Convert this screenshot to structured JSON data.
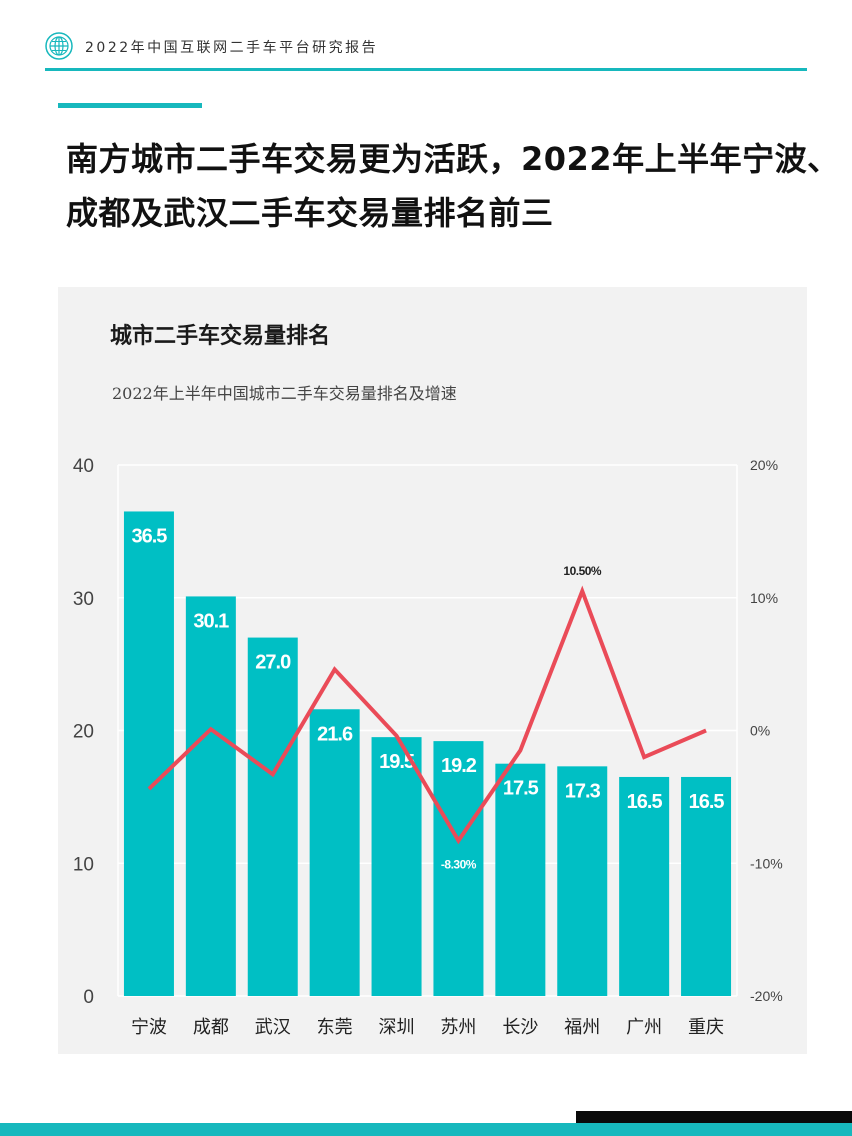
{
  "header": {
    "report_title": "2022年中国互联网二手车平台研究报告",
    "logo_icon": "globe-logo-icon"
  },
  "headline": {
    "line1": "南方城市二手车交易更为活跃，2022年上半年宁波、",
    "line2": "成都及武汉二手车交易量排名前三"
  },
  "colors": {
    "accent": "#17b8bd",
    "bar": "#00bfc4",
    "line": "#ea4b58",
    "panel": "#f2f2f2"
  },
  "chart_data": {
    "type": "bar",
    "title": "城市二手车交易量排名",
    "subtitle": "2022年上半年中国城市二手车交易量排名及增速",
    "categories": [
      "宁波",
      "成都",
      "武汉",
      "东莞",
      "深圳",
      "苏州",
      "长沙",
      "福州",
      "广州",
      "重庆"
    ],
    "series": [
      {
        "name": "交易量",
        "type": "bar",
        "axis": "left",
        "values": [
          36.5,
          30.1,
          27.0,
          21.6,
          19.5,
          19.2,
          17.5,
          17.3,
          16.5,
          16.5
        ],
        "labels": [
          "36.5",
          "30.1",
          "27.0",
          "21.6",
          "19.5",
          "19.2",
          "17.5",
          "17.3",
          "16.5",
          "16.5"
        ]
      },
      {
        "name": "增速",
        "type": "line",
        "axis": "right",
        "values": [
          -4.4,
          0.1,
          -3.3,
          4.6,
          -0.4,
          -8.3,
          -1.5,
          10.5,
          -2.0,
          0.0
        ],
        "annotations": [
          {
            "index": 5,
            "text": "-8.30%"
          },
          {
            "index": 7,
            "text": "10.50%"
          }
        ]
      }
    ],
    "yaxis_left": {
      "min": 0,
      "max": 40,
      "ticks": [
        "0",
        "10",
        "20",
        "30",
        "40"
      ]
    },
    "yaxis_right": {
      "min": -20,
      "max": 20,
      "ticks": [
        "-20%",
        "-10%",
        "0%",
        "10%",
        "20%"
      ]
    },
    "grid": true
  }
}
